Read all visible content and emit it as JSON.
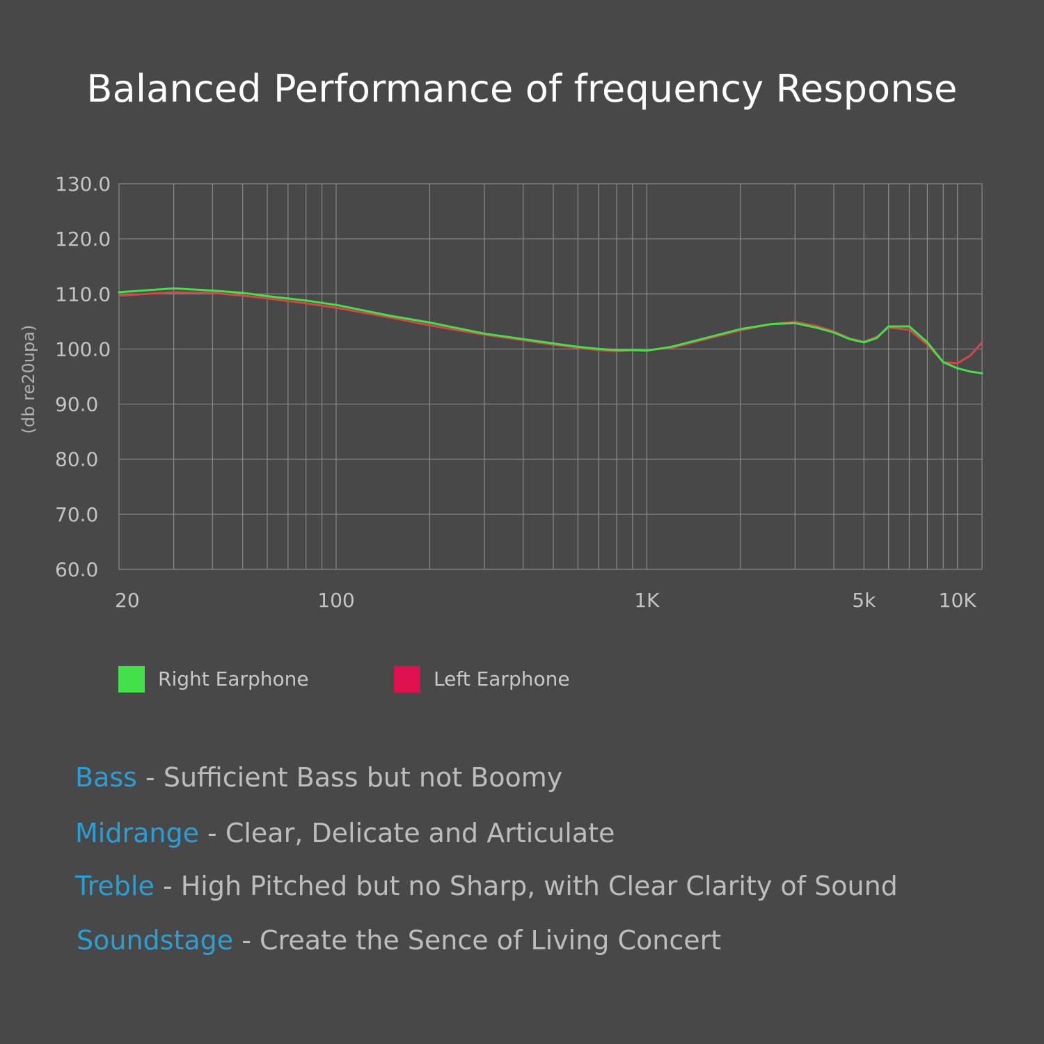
{
  "title": "Balanced Performance of frequency Response",
  "colors": {
    "background": "#484848",
    "grid": "#8a8a8a",
    "tick_text": "#c4c4c4",
    "right": "#44e04a",
    "left": "#e0114f",
    "left_line": "#d24848",
    "term": "#2a9fd6",
    "desc": "#bdbdbd"
  },
  "chart_data": {
    "type": "line",
    "title": "Balanced Performance of frequency Response",
    "xlabel": "",
    "ylabel": "(db re20upa)",
    "xscale": "log",
    "xlim": [
      20,
      12000
    ],
    "ylim": [
      60,
      130
    ],
    "grid": true,
    "legend_position": "bottom-left",
    "ytick_values": [
      60,
      70,
      80,
      90,
      100,
      110,
      120,
      130
    ],
    "ytick_labels": [
      "60.0",
      "70.0",
      "80.0",
      "90.0",
      "100.0",
      "110.0",
      "120.0",
      "130.0"
    ],
    "xtick_values": [
      20,
      100,
      1000,
      5000,
      10000
    ],
    "xtick_labels": [
      "20",
      "100",
      "1K",
      "5k",
      "10K"
    ],
    "series": [
      {
        "name": "Right Earphone",
        "color": "#44e04a",
        "x": [
          20,
          30,
          40,
          50,
          60,
          80,
          100,
          150,
          200,
          300,
          400,
          500,
          600,
          700,
          800,
          900,
          1000,
          1200,
          1500,
          2000,
          2500,
          3000,
          3500,
          4000,
          4500,
          5000,
          5500,
          6000,
          7000,
          8000,
          9000,
          10000,
          11000,
          12000
        ],
        "y": [
          110.3,
          111.0,
          110.6,
          110.2,
          109.6,
          108.8,
          108.0,
          106.0,
          104.8,
          102.8,
          101.8,
          101.0,
          100.4,
          100.0,
          99.8,
          99.8,
          99.7,
          100.4,
          101.8,
          103.6,
          104.5,
          104.7,
          103.9,
          103.0,
          101.8,
          101.2,
          102.0,
          104.1,
          104.1,
          101.2,
          97.6,
          96.5,
          95.9,
          95.6
        ]
      },
      {
        "name": "Left Earphone",
        "color": "#d24848",
        "x": [
          20,
          30,
          40,
          50,
          60,
          80,
          100,
          150,
          200,
          300,
          400,
          500,
          600,
          700,
          800,
          900,
          1000,
          1200,
          1500,
          2000,
          2500,
          3000,
          3500,
          4000,
          4500,
          5000,
          5500,
          6000,
          7000,
          8000,
          9000,
          10000,
          11000,
          12000
        ],
        "y": [
          109.7,
          110.3,
          110.2,
          109.7,
          109.2,
          108.3,
          107.5,
          105.7,
          104.3,
          102.6,
          101.6,
          100.8,
          100.2,
          99.8,
          99.6,
          99.8,
          99.8,
          100.2,
          101.6,
          103.4,
          104.5,
          104.9,
          104.2,
          103.2,
          101.9,
          101.3,
          102.2,
          103.9,
          103.5,
          100.8,
          97.6,
          97.4,
          98.8,
          101.2
        ]
      }
    ]
  },
  "legend": {
    "right_label": "Right Earphone",
    "left_label": "Left Earphone"
  },
  "features": [
    {
      "term": "Bass",
      "desc": " -  Sufficient Bass but not Boomy"
    },
    {
      "term": "Midrange",
      "desc": " - Clear, Delicate and Articulate"
    },
    {
      "term": "Treble",
      "desc": " - High Pitched but no Sharp, with Clear Clarity of Sound"
    },
    {
      "term": "Soundstage",
      "desc": " - Create the Sence of Living Concert"
    }
  ]
}
